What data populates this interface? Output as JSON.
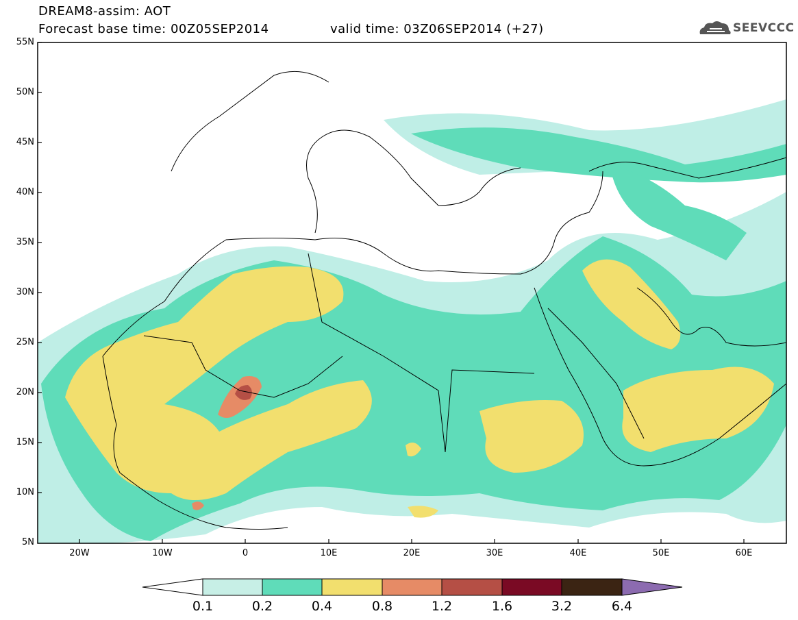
{
  "header": {
    "line1": "DREAM8-assim: AOT",
    "line2": "Forecast base time: 00Z05SEP2014",
    "valid": "valid time: 03Z06SEP2014 (+27)",
    "logo_text": "SEEVCCC"
  },
  "map": {
    "lat_labels": [
      "55N",
      "50N",
      "45N",
      "40N",
      "35N",
      "30N",
      "25N",
      "20N",
      "15N",
      "10N",
      "5N"
    ],
    "lon_labels": [
      "20W",
      "10W",
      "0",
      "10E",
      "20E",
      "30E",
      "40E",
      "50E",
      "60E"
    ],
    "colors": {
      "ocean": "#ffffff",
      "c01": "#bfeee6",
      "c02": "#5fdcb9",
      "c04": "#f2df6e",
      "c08": "#e68b66",
      "c12": "#b54f45"
    }
  },
  "colorbar": {
    "labels": [
      "0.1",
      "0.2",
      "0.4",
      "0.8",
      "1.2",
      "1.6",
      "3.2",
      "6.4"
    ],
    "colors": [
      "#ffffff",
      "#c7efe6",
      "#5fdcb9",
      "#f2df6e",
      "#e68b66",
      "#b54f45",
      "#7a0a24",
      "#3b2413",
      "#8c6bb0"
    ]
  }
}
